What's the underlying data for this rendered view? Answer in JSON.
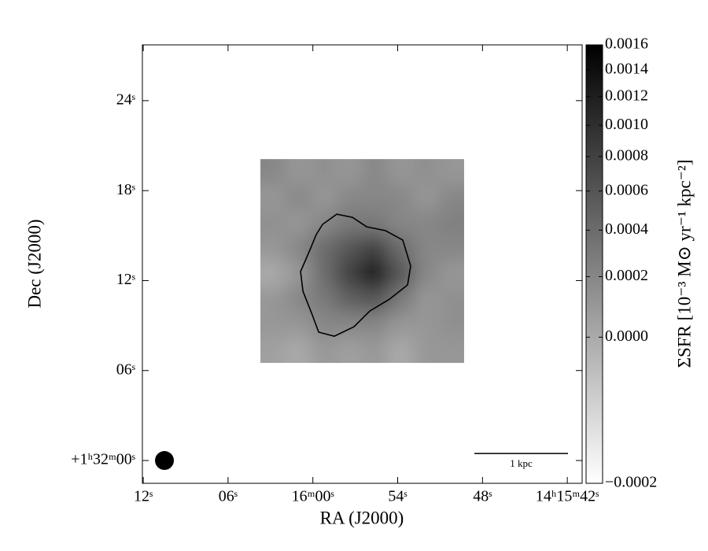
{
  "chart_data": {
    "type": "image",
    "xlabel": "RA (J2000)",
    "ylabel": "Dec (J2000)",
    "xlim": [
      72.06,
      40.95
    ],
    "ylim": [
      -1.52,
      27.72
    ],
    "xticks": [
      {
        "value": 72,
        "label": "12ˢ"
      },
      {
        "value": 66,
        "label": "06ˢ"
      },
      {
        "value": 60,
        "label": "16ᵐ00ˢ"
      },
      {
        "value": 54,
        "label": "54ˢ"
      },
      {
        "value": 48,
        "label": "48ˢ"
      },
      {
        "value": 42,
        "label": "14ʰ15ᵐ42ˢ"
      }
    ],
    "yticks": [
      {
        "value": 0,
        "label": "+1ʰ32ᵐ00ˢ"
      },
      {
        "value": 6,
        "label": "06ˢ"
      },
      {
        "value": 12,
        "label": "12ˢ"
      },
      {
        "value": 18,
        "label": "18ˢ"
      },
      {
        "value": 24,
        "label": "24ˢ"
      }
    ],
    "image_extent": {
      "x": [
        63.71,
        49.3
      ],
      "y": [
        20.1,
        6.51
      ]
    },
    "z": [
      [
        0.0002,
        0.0001,
        0.00015,
        0.0001,
        0.0002,
        0.0001,
        0.00015,
        0.0001
      ],
      [
        0.0001,
        0.0002,
        0.0001,
        0.0002,
        0.0002,
        0.0002,
        0.0001,
        0.0002
      ],
      [
        0.00015,
        0.0001,
        0.0002,
        0.0003,
        0.0003,
        0.0002,
        0.0002,
        0.00025
      ],
      [
        0.0001,
        0.0002,
        0.0004,
        0.0006,
        0.0008,
        0.0004,
        0.0002,
        0.0002
      ],
      [
        0,
        0.0001,
        0.0004,
        0.0008,
        0.0013,
        0.0006,
        0.0002,
        0.0001
      ],
      [
        0.0001,
        0.0002,
        0.0003,
        0.0005,
        0.0006,
        0.0003,
        0.0001,
        0.00015
      ],
      [
        0.0001,
        0.0001,
        0.0002,
        0.0002,
        0.0002,
        0.0001,
        0.0001,
        0.00015
      ],
      [
        5e-05,
        0,
        0.0001,
        5e-05,
        0.0001,
        0,
        0.0001,
        0.0001
      ]
    ],
    "contour": {
      "x": [
        59.76,
        59.31,
        58.31,
        57.2,
        56.2,
        54.86,
        53.64,
        53.08,
        53.3,
        54.58,
        55.97,
        57.09,
        58.48,
        59.59,
        60.04,
        60.7,
        60.87,
        60.15
      ],
      "y": [
        15.07,
        15.75,
        16.43,
        16.22,
        15.59,
        15.33,
        14.7,
        12.97,
        11.71,
        10.76,
        9.97,
        8.92,
        8.29,
        8.56,
        9.71,
        11.29,
        12.6,
        14.17
      ]
    },
    "beam": {
      "x": 70.5,
      "y": 0,
      "radius": 0.63
    },
    "scale_bar": {
      "x": [
        48.57,
        41.95
      ],
      "y": 0.47,
      "label": "1 kpc"
    },
    "colorbar": {
      "label": "ΣSFR [10⁻³ M⊙ yr⁻¹ kpc⁻²]",
      "clim": [
        -0.0002,
        0.0016
      ],
      "stretch": "sqrt",
      "ticks": [
        0.0016,
        0.0014,
        0.0012,
        {
          "value": 0.001,
          "label": "0.0010"
        },
        0.0008,
        0.0006,
        0.0004,
        0.0002,
        {
          "value": 0,
          "label": "0.0000"
        },
        {
          "value": -0.0002,
          "label": "−0.0002"
        }
      ]
    }
  }
}
